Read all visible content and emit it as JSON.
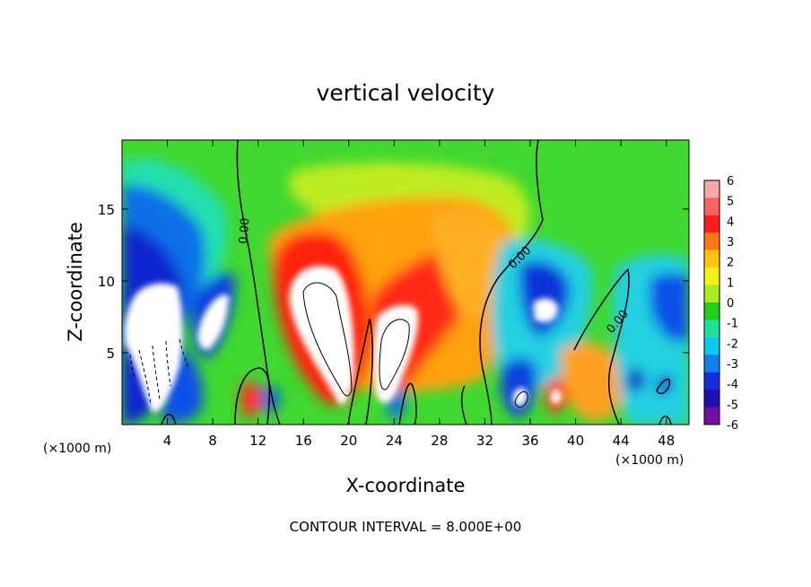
{
  "chart_data": {
    "type": "heatmap",
    "title": "vertical velocity",
    "xlabel": "X-coordinate",
    "ylabel": "Z-coordinate",
    "x_unit": "(×1000 m)",
    "x_ticks": [
      4,
      8,
      12,
      16,
      20,
      24,
      28,
      32,
      36,
      40,
      44,
      48
    ],
    "y_ticks": [
      5,
      10,
      15
    ],
    "xlim": [
      0,
      50
    ],
    "ylim": [
      0,
      19.8
    ],
    "colorbar": {
      "ticks": [
        6,
        5,
        4,
        3,
        2,
        1,
        0,
        -1,
        -2,
        -3,
        -4,
        -5,
        -6
      ],
      "colors": [
        "#f4a8a8",
        "#ff6060",
        "#ff1f1f",
        "#ff7a10",
        "#ffc410",
        "#f6f016",
        "#a8ec20",
        "#20d020",
        "#20e0a0",
        "#10c8f0",
        "#1080f0",
        "#1030e0",
        "#2010b0",
        "#7010a0"
      ]
    },
    "contour_labels": [
      "0.00",
      "0.00",
      "0.00"
    ],
    "footnote": "CONTOUR INTERVAL = 8.000E+00"
  }
}
